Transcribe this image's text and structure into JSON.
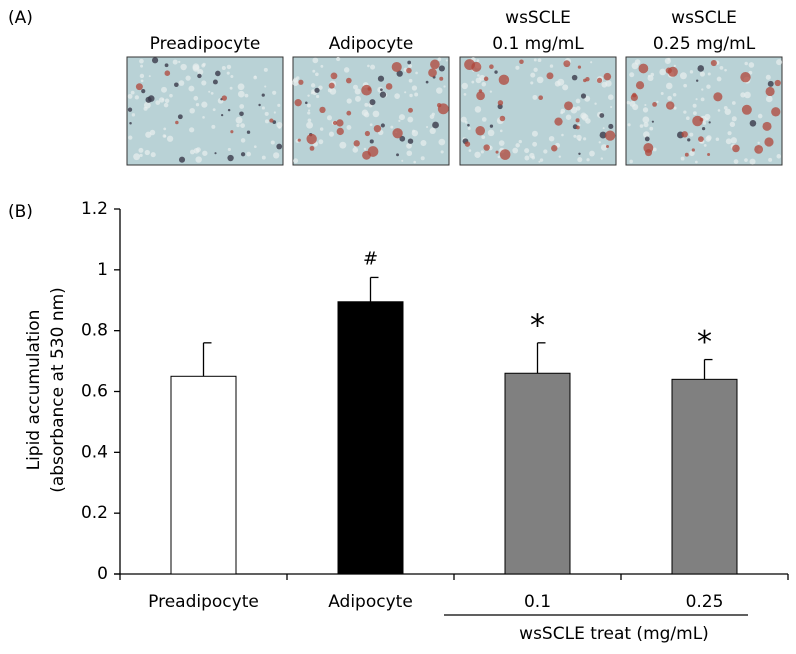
{
  "panel_a": {
    "label": "(A)",
    "captions": [
      [
        "Preadipocyte"
      ],
      [
        "Adipocyte"
      ],
      [
        "wsSCLE",
        "0.1 mg/mL"
      ],
      [
        "wsSCLE",
        "0.25 mg/mL"
      ]
    ]
  },
  "chart_data": {
    "type": "bar",
    "panel_label": "(B)",
    "y_label": [
      "Lipid accumulation",
      "(absorbance at 530 nm)"
    ],
    "categories": [
      "Preadipocyte",
      "Adipocyte",
      "0.1",
      "0.25"
    ],
    "group_label": "wsSCLE treat (mg/mL)",
    "values": [
      0.65,
      0.895,
      0.66,
      0.64
    ],
    "errors": [
      0.11,
      0.08,
      0.1,
      0.065
    ],
    "annotations": [
      null,
      "#",
      "*",
      "*"
    ],
    "colors": [
      "#ffffff",
      "#000000",
      "#808080",
      "#808080"
    ],
    "ylim": [
      0,
      1.2
    ],
    "yticks": [
      0,
      0.2,
      0.4,
      0.6,
      0.8,
      1,
      1.2
    ]
  }
}
